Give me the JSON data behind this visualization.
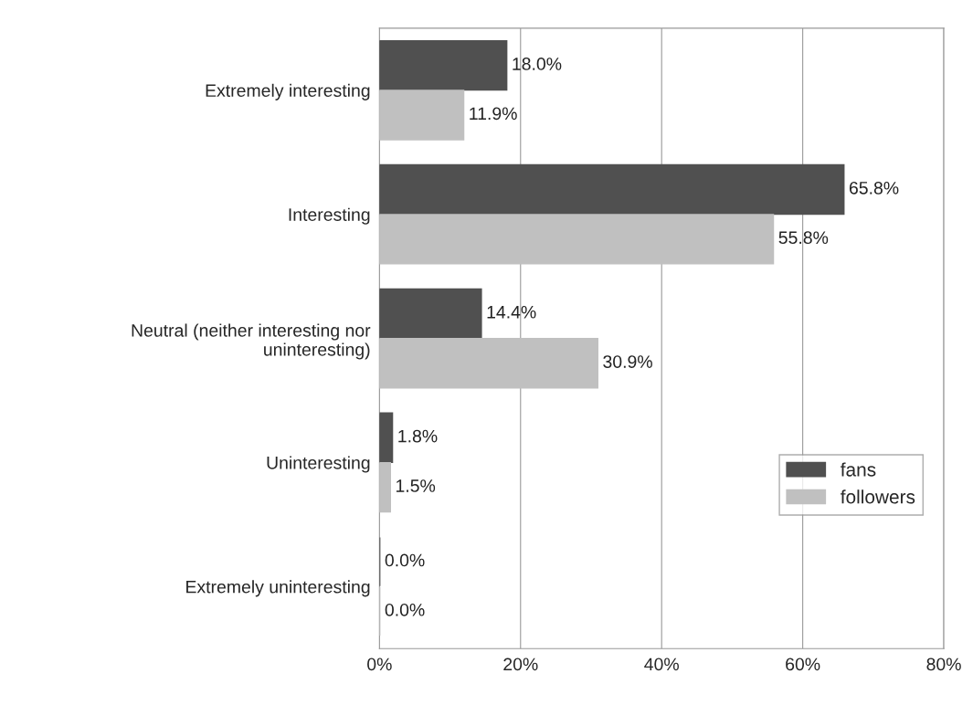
{
  "chart_data": {
    "type": "bar",
    "orientation": "horizontal",
    "categories": [
      "Extremely interesting",
      "Interesting",
      "Neutral (neither interesting nor\nuninteresting)",
      "Uninteresting",
      "Extremely uninteresting"
    ],
    "series": [
      {
        "name": "fans",
        "color": "#505050",
        "values": [
          18.0,
          65.8,
          14.4,
          1.8,
          0.0
        ],
        "value_labels": [
          "18.0%",
          "65.8%",
          "14.4%",
          "1.8%",
          "0.0%"
        ]
      },
      {
        "name": "followers",
        "color": "#c0c0c0",
        "values": [
          11.9,
          55.8,
          30.9,
          1.5,
          0.0
        ],
        "value_labels": [
          "11.9%",
          "55.8%",
          "30.9%",
          "1.5%",
          "0.0%"
        ]
      }
    ],
    "xlim": [
      0,
      80
    ],
    "xticks": [
      {
        "value": 0,
        "label": "0%"
      },
      {
        "value": 20,
        "label": "20%"
      },
      {
        "value": 40,
        "label": "40%"
      },
      {
        "value": 60,
        "label": "60%"
      },
      {
        "value": 80,
        "label": "80%"
      }
    ],
    "grid": "x",
    "legend": "bottom right"
  }
}
